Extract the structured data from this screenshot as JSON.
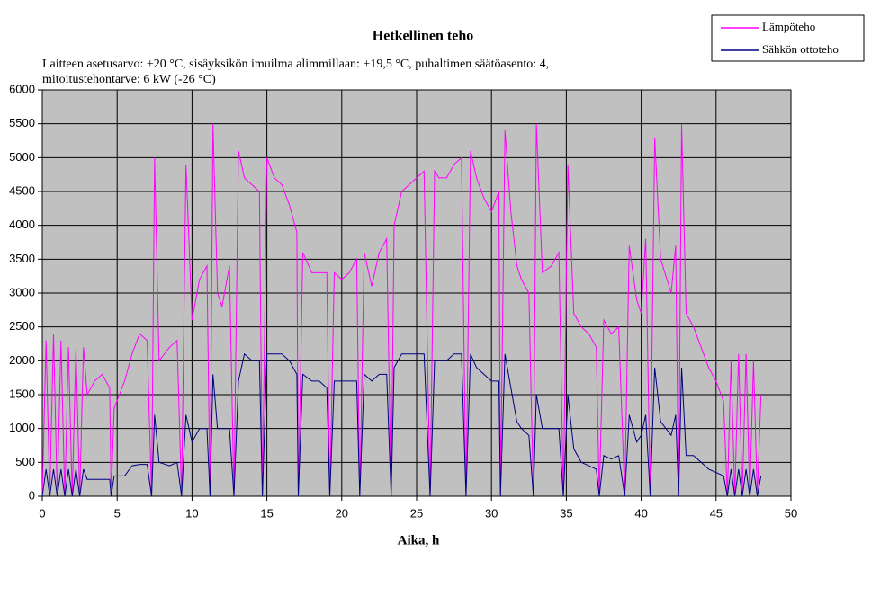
{
  "chart_data": {
    "type": "line",
    "title": "Hetkellinen teho",
    "subtitle_lines": [
      "Laitteen asetusarvo: +20 °C, sisäyksikön imuilma alimmillaan: +19,5 °C, puhaltimen säätöasento: 4,",
      "mitoitustehontarve: 6 kW (-26 °C)"
    ],
    "xlabel": "Aika, h",
    "x": [
      0,
      0.25,
      0.5,
      0.75,
      1,
      1.25,
      1.5,
      1.75,
      2,
      2.25,
      2.5,
      2.75,
      3,
      3.5,
      4,
      4.5,
      4.6,
      4.8,
      5.5,
      6,
      6.5,
      7,
      7.3,
      7.5,
      7.8,
      8.5,
      9,
      9.3,
      9.6,
      10,
      10.5,
      11,
      11.2,
      11.4,
      11.7,
      12,
      12.5,
      12.8,
      13.1,
      13.5,
      14,
      14.5,
      14.7,
      15,
      15.5,
      16,
      16.5,
      17,
      17.1,
      17.4,
      18,
      18.5,
      19,
      19.2,
      19.5,
      20,
      20.5,
      21,
      21.2,
      21.5,
      22,
      22.5,
      23,
      23.3,
      23.5,
      24,
      24.5,
      25,
      25.5,
      25.9,
      26.2,
      26.5,
      27,
      27.5,
      28,
      28.3,
      28.6,
      29,
      29.5,
      30,
      30.5,
      30.6,
      30.9,
      31.3,
      31.7,
      32,
      32.5,
      32.8,
      33,
      33.4,
      34,
      34.5,
      34.8,
      35.1,
      35.5,
      36,
      36.5,
      37,
      37.2,
      37.5,
      38,
      38.5,
      38.9,
      39.2,
      39.7,
      40,
      40.3,
      40.6,
      40.9,
      41.3,
      42,
      42.3,
      42.5,
      42.7,
      43,
      43.5,
      44,
      44.5,
      45,
      45.5,
      45.75,
      46,
      46.25,
      46.5,
      46.75,
      47,
      47.25,
      47.5,
      47.75,
      48
    ],
    "series": [
      {
        "name": "Lämpöteho",
        "color": "#ff00ff",
        "values": [
          0,
          2300,
          0,
          2400,
          0,
          2300,
          0,
          2200,
          0,
          2200,
          0,
          2200,
          1500,
          1700,
          1800,
          1600,
          0,
          1300,
          1700,
          2100,
          2400,
          2300,
          0,
          5000,
          2000,
          2200,
          2300,
          0,
          4900,
          2600,
          3200,
          3400,
          0,
          5500,
          3000,
          2800,
          3400,
          0,
          5100,
          4700,
          4600,
          4500,
          0,
          5000,
          4700,
          4600,
          4300,
          3900,
          0,
          3600,
          3300,
          3300,
          3300,
          0,
          3300,
          3200,
          3300,
          3500,
          0,
          3600,
          3100,
          3600,
          3800,
          0,
          4000,
          4500,
          4600,
          4700,
          4800,
          0,
          4800,
          4700,
          4700,
          4900,
          5000,
          0,
          5100,
          4700,
          4400,
          4200,
          4500,
          0,
          5400,
          4200,
          3400,
          3200,
          3000,
          0,
          5500,
          3300,
          3400,
          3600,
          0,
          4900,
          2700,
          2500,
          2400,
          2200,
          0,
          2600,
          2400,
          2500,
          0,
          3700,
          2900,
          2700,
          3800,
          0,
          5300,
          3500,
          3000,
          3700,
          0,
          5500,
          2700,
          2500,
          2200,
          1900,
          1700,
          1400,
          0,
          2000,
          0,
          2100,
          0,
          2100,
          0,
          2000,
          0,
          1500
        ]
      },
      {
        "name": "Sähkön ottoteho",
        "color": "#000080",
        "values": [
          0,
          400,
          0,
          400,
          0,
          400,
          0,
          400,
          0,
          400,
          0,
          400,
          250,
          250,
          250,
          250,
          0,
          300,
          300,
          450,
          470,
          470,
          0,
          1200,
          500,
          450,
          500,
          0,
          1200,
          800,
          1000,
          1000,
          0,
          1800,
          1000,
          1000,
          1000,
          0,
          1700,
          2100,
          2000,
          2000,
          0,
          2100,
          2100,
          2100,
          2000,
          1800,
          0,
          1800,
          1700,
          1700,
          1600,
          0,
          1700,
          1700,
          1700,
          1700,
          0,
          1800,
          1700,
          1800,
          1800,
          0,
          1900,
          2100,
          2100,
          2100,
          2100,
          0,
          2000,
          2000,
          2000,
          2100,
          2100,
          0,
          2100,
          1900,
          1800,
          1700,
          1700,
          0,
          2100,
          1600,
          1100,
          1000,
          900,
          0,
          1500,
          1000,
          1000,
          1000,
          0,
          1500,
          700,
          500,
          450,
          400,
          0,
          600,
          550,
          600,
          0,
          1200,
          800,
          900,
          1200,
          0,
          1900,
          1100,
          900,
          1200,
          0,
          1900,
          600,
          600,
          500,
          400,
          350,
          300,
          0,
          400,
          0,
          400,
          0,
          400,
          0,
          400,
          0,
          300
        ]
      }
    ],
    "xlim": [
      0,
      50
    ],
    "xticks": [
      0,
      5,
      10,
      15,
      20,
      25,
      30,
      35,
      40,
      45,
      50
    ],
    "ylim": [
      0,
      6000
    ],
    "yticks": [
      0,
      500,
      1000,
      1500,
      2000,
      2500,
      3000,
      3500,
      4000,
      4500,
      5000,
      5500,
      6000
    ],
    "grid": true,
    "plot_background": "#c0c0c0",
    "legend": "upper right"
  }
}
